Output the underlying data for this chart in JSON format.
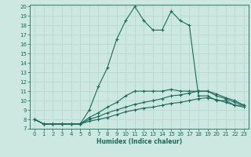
{
  "xlabel": "Humidex (Indice chaleur)",
  "bg_color": "#cce8e0",
  "line_color": "#1a6b5a",
  "grid_color": "#b8d8d0",
  "xlim": [
    -0.5,
    23.5
  ],
  "ylim": [
    7,
    20.2
  ],
  "yticks": [
    7,
    8,
    9,
    10,
    11,
    12,
    13,
    14,
    15,
    16,
    17,
    18,
    19,
    20
  ],
  "xticks": [
    0,
    1,
    2,
    3,
    4,
    5,
    6,
    7,
    8,
    9,
    10,
    11,
    12,
    13,
    14,
    15,
    16,
    17,
    18,
    19,
    20,
    21,
    22,
    23
  ],
  "series": [
    {
      "x": [
        0,
        1,
        2,
        3,
        4,
        5,
        6,
        7,
        8,
        9,
        10,
        11,
        12,
        13,
        14,
        15,
        16,
        17,
        18,
        19,
        20,
        21,
        22,
        23
      ],
      "y": [
        8,
        7.5,
        7.5,
        7.5,
        7.5,
        7.5,
        7.8,
        8.0,
        8.2,
        8.5,
        8.8,
        9.0,
        9.2,
        9.3,
        9.5,
        9.7,
        9.8,
        10.0,
        10.2,
        10.3,
        10.1,
        9.8,
        9.5,
        9.3
      ]
    },
    {
      "x": [
        0,
        1,
        2,
        3,
        4,
        5,
        6,
        7,
        8,
        9,
        10,
        11,
        12,
        13,
        14,
        15,
        16,
        17,
        18,
        19,
        20,
        21,
        22,
        23
      ],
      "y": [
        8,
        7.5,
        7.5,
        7.5,
        7.5,
        7.5,
        8.0,
        8.3,
        8.7,
        9.0,
        9.3,
        9.6,
        9.8,
        10.0,
        10.2,
        10.5,
        10.6,
        10.8,
        11.0,
        11.0,
        10.7,
        10.3,
        10.0,
        9.5
      ]
    },
    {
      "x": [
        0,
        1,
        2,
        3,
        4,
        5,
        6,
        7,
        8,
        9,
        10,
        11,
        12,
        13,
        14,
        15,
        16,
        17,
        18,
        19,
        20,
        21,
        22,
        23
      ],
      "y": [
        8,
        7.5,
        7.5,
        7.5,
        7.5,
        7.5,
        8.2,
        8.7,
        9.3,
        9.8,
        10.5,
        11.0,
        11.0,
        11.0,
        11.0,
        11.2,
        11.0,
        11.0,
        11.0,
        11.0,
        10.5,
        10.2,
        9.8,
        9.5
      ]
    },
    {
      "x": [
        0,
        1,
        2,
        3,
        4,
        5,
        6,
        7,
        8,
        9,
        10,
        11,
        12,
        13,
        14,
        15,
        16,
        17,
        18,
        19,
        20,
        21,
        22,
        23
      ],
      "y": [
        8,
        7.5,
        7.5,
        7.5,
        7.5,
        7.5,
        9.0,
        11.5,
        13.5,
        16.5,
        18.5,
        20.0,
        18.5,
        17.5,
        17.5,
        19.5,
        18.5,
        18.0,
        10.5,
        10.5,
        10.0,
        10.0,
        9.5,
        9.5
      ]
    }
  ]
}
